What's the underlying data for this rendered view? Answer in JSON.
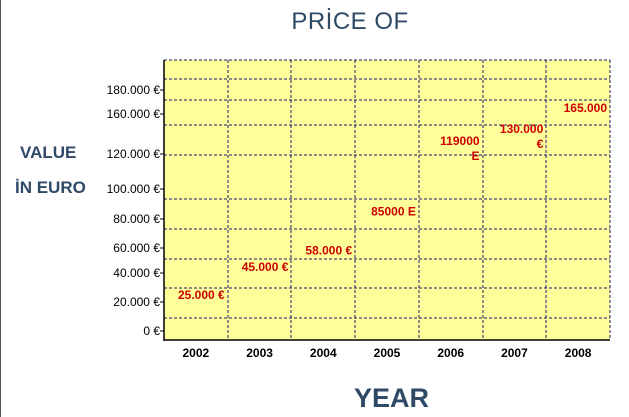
{
  "chart_data": {
    "type": "table",
    "title": "PRİCE OF",
    "ylabel_lines": [
      "VALUE",
      "İN EURO"
    ],
    "xlabel": "YEAR",
    "categories": [
      "2002",
      "2003",
      "2004",
      "2005",
      "2006",
      "2007",
      "2008"
    ],
    "y_ticks": [
      {
        "value": 0,
        "label": "0 €"
      },
      {
        "value": 20000,
        "label": "20.000 €"
      },
      {
        "value": 40000,
        "label": "40.000 €"
      },
      {
        "value": 60000,
        "label": "60.000 €"
      },
      {
        "value": 80000,
        "label": "80.000 €"
      },
      {
        "value": 100000,
        "label": "100.000 €"
      },
      {
        "value": 120000,
        "label": "120.000 €"
      },
      {
        "value": 160000,
        "label": "160.000 €"
      },
      {
        "value": 180000,
        "label": "180.000 €"
      }
    ],
    "series": [
      {
        "values": [
          25000,
          45000,
          58000,
          85000,
          119000,
          130000,
          165000
        ],
        "labels": [
          [
            "25.000 €"
          ],
          [
            "45.000 €"
          ],
          [
            "58.000 €"
          ],
          [
            "85000 E"
          ],
          [
            "119000",
            "E"
          ],
          [
            "130.000",
            "€"
          ],
          [
            "165.000"
          ]
        ]
      }
    ],
    "grid": true,
    "colors": {
      "plot_background": "#ffff99",
      "grid": "#1a1a6e",
      "data_label": "#cc0000",
      "title": "#2e4a66",
      "axis_text": "#000000"
    }
  }
}
